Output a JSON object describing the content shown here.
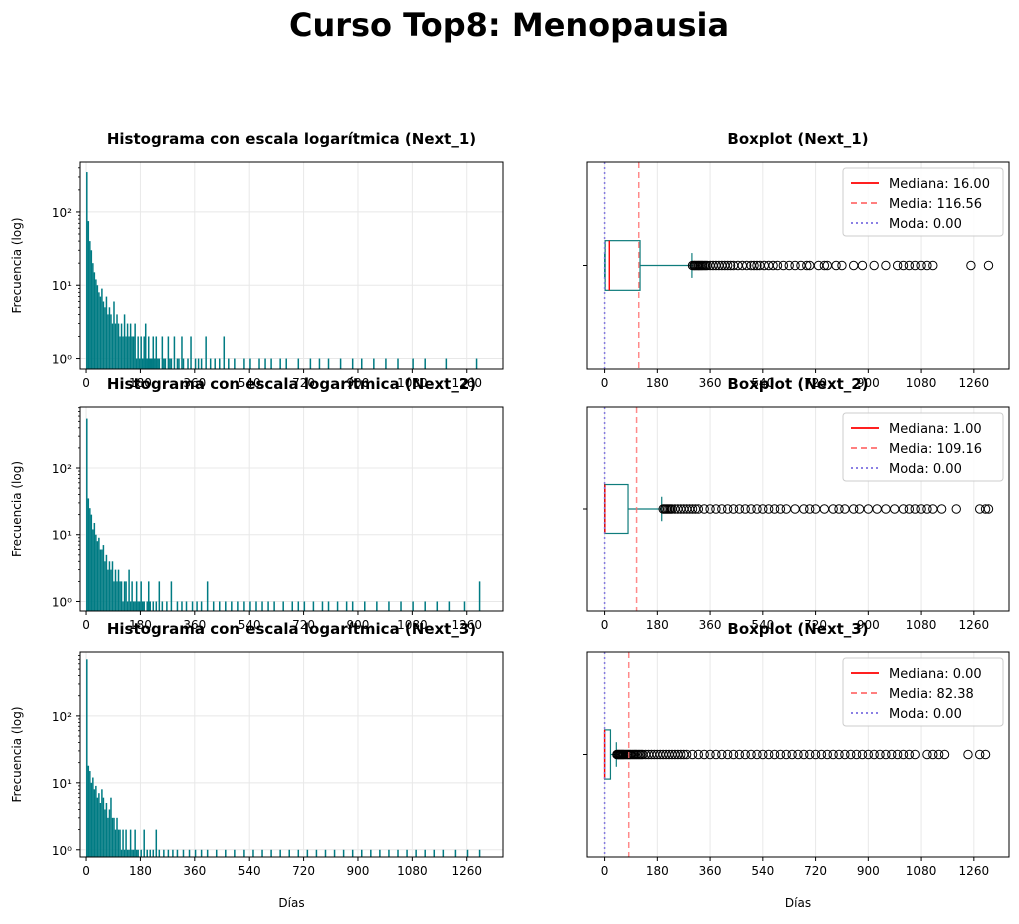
{
  "figure": {
    "title": "Curso Top8: Menopausia",
    "xlabel": "Días",
    "ylabel": "Frecuencia (log)"
  },
  "colors": {
    "bars": "#007b83",
    "box": "#0f7c7c",
    "median": "#ff0000",
    "mean": "#ff6d6d",
    "mode": "#7a6fe0",
    "grid": "#e8e8e8"
  },
  "chart_data": [
    {
      "type": "bar",
      "title": "Histograma con escala logarítmica (Next_1)",
      "ylabel": "Frecuencia (log)",
      "xticks": [
        0,
        180,
        360,
        540,
        720,
        900,
        1080,
        1260
      ],
      "xtick_labels": [
        "0",
        "180",
        "360",
        "540",
        "720",
        "900",
        "1080",
        "1260"
      ],
      "yscale": "log",
      "yticks": [
        "10⁰",
        "10¹",
        "10²"
      ],
      "xlim": [
        -20,
        1380
      ],
      "ylim": [
        0.72,
        480
      ],
      "grid": true,
      "bin_width": 5,
      "bins": [
        [
          0,
          350
        ],
        [
          5,
          75
        ],
        [
          10,
          40
        ],
        [
          15,
          30
        ],
        [
          20,
          20
        ],
        [
          25,
          15
        ],
        [
          30,
          12
        ],
        [
          35,
          10
        ],
        [
          40,
          8
        ],
        [
          45,
          7
        ],
        [
          50,
          9
        ],
        [
          55,
          6
        ],
        [
          60,
          5
        ],
        [
          65,
          7
        ],
        [
          70,
          4
        ],
        [
          75,
          5
        ],
        [
          80,
          4
        ],
        [
          85,
          3
        ],
        [
          90,
          6
        ],
        [
          95,
          3
        ],
        [
          100,
          4
        ],
        [
          105,
          3
        ],
        [
          110,
          2
        ],
        [
          115,
          3
        ],
        [
          120,
          2
        ],
        [
          125,
          4
        ],
        [
          130,
          2
        ],
        [
          135,
          3
        ],
        [
          140,
          2
        ],
        [
          145,
          3
        ],
        [
          150,
          2
        ],
        [
          155,
          2
        ],
        [
          160,
          3
        ],
        [
          165,
          1
        ],
        [
          170,
          2
        ],
        [
          175,
          1
        ],
        [
          180,
          2
        ],
        [
          185,
          1
        ],
        [
          190,
          2
        ],
        [
          195,
          3
        ],
        [
          200,
          1
        ],
        [
          205,
          2
        ],
        [
          210,
          1
        ],
        [
          215,
          1
        ],
        [
          220,
          2
        ],
        [
          225,
          1
        ],
        [
          230,
          2
        ],
        [
          235,
          1
        ],
        [
          240,
          1
        ],
        [
          250,
          2
        ],
        [
          255,
          1
        ],
        [
          260,
          1
        ],
        [
          270,
          2
        ],
        [
          275,
          1
        ],
        [
          280,
          1
        ],
        [
          290,
          2
        ],
        [
          300,
          1
        ],
        [
          305,
          1
        ],
        [
          315,
          2
        ],
        [
          320,
          1
        ],
        [
          335,
          1
        ],
        [
          345,
          2
        ],
        [
          360,
          1
        ],
        [
          370,
          1
        ],
        [
          380,
          1
        ],
        [
          395,
          2
        ],
        [
          410,
          1
        ],
        [
          425,
          1
        ],
        [
          440,
          1
        ],
        [
          455,
          2
        ],
        [
          470,
          1
        ],
        [
          490,
          1
        ],
        [
          520,
          1
        ],
        [
          540,
          1
        ],
        [
          570,
          1
        ],
        [
          590,
          1
        ],
        [
          610,
          1
        ],
        [
          640,
          1
        ],
        [
          660,
          1
        ],
        [
          700,
          1
        ],
        [
          740,
          1
        ],
        [
          770,
          1
        ],
        [
          800,
          1
        ],
        [
          840,
          1
        ],
        [
          880,
          1
        ],
        [
          910,
          1
        ],
        [
          950,
          1
        ],
        [
          990,
          1
        ],
        [
          1030,
          1
        ],
        [
          1080,
          1
        ],
        [
          1120,
          1
        ],
        [
          1190,
          1
        ],
        [
          1290,
          1
        ]
      ]
    },
    {
      "type": "boxplot",
      "title": "Boxplot (Next_1)",
      "xticks": [
        0,
        180,
        360,
        540,
        720,
        900,
        1080,
        1260
      ],
      "xtick_labels": [
        "0",
        "180",
        "360",
        "540",
        "720",
        "900",
        "1080",
        "1260"
      ],
      "xlim": [
        -60,
        1380
      ],
      "grid": true,
      "q1": 2,
      "median": 16.0,
      "q3": 121,
      "whisker_low": 0,
      "whisker_high": 298,
      "mean": 116.56,
      "mode": 0.0,
      "outliers": [
        300,
        305,
        308,
        312,
        316,
        320,
        323,
        327,
        331,
        335,
        340,
        345,
        350,
        360,
        370,
        380,
        390,
        400,
        410,
        420,
        430,
        440,
        455,
        470,
        485,
        500,
        510,
        520,
        530,
        545,
        560,
        575,
        590,
        610,
        630,
        650,
        670,
        690,
        700,
        730,
        750,
        760,
        790,
        810,
        850,
        880,
        920,
        960,
        1000,
        1020,
        1040,
        1060,
        1080,
        1100,
        1120,
        1250,
        1310
      ],
      "legend": [
        "Mediana: 16.00",
        "Media: 116.56",
        "Moda: 0.00"
      ],
      "legend_position": "upper right"
    },
    {
      "type": "bar",
      "title": "Histograma con escala logarítmica (Next_2)",
      "ylabel": "Frecuencia (log)",
      "xticks": [
        0,
        180,
        360,
        540,
        720,
        900,
        1080,
        1260
      ],
      "xtick_labels": [
        "0",
        "180",
        "360",
        "540",
        "720",
        "900",
        "1080",
        "1260"
      ],
      "yscale": "log",
      "yticks": [
        "10⁰",
        "10¹",
        "10²"
      ],
      "xlim": [
        -20,
        1380
      ],
      "ylim": [
        0.72,
        820
      ],
      "grid": true,
      "bin_width": 5,
      "bins": [
        [
          0,
          550
        ],
        [
          5,
          35
        ],
        [
          10,
          25
        ],
        [
          15,
          20
        ],
        [
          20,
          12
        ],
        [
          25,
          15
        ],
        [
          30,
          10
        ],
        [
          35,
          8
        ],
        [
          40,
          9
        ],
        [
          45,
          6
        ],
        [
          50,
          6
        ],
        [
          55,
          7
        ],
        [
          60,
          4
        ],
        [
          65,
          5
        ],
        [
          70,
          3
        ],
        [
          75,
          4
        ],
        [
          80,
          3
        ],
        [
          85,
          4
        ],
        [
          90,
          2
        ],
        [
          95,
          3
        ],
        [
          100,
          2
        ],
        [
          105,
          3
        ],
        [
          110,
          2
        ],
        [
          115,
          2
        ],
        [
          120,
          1
        ],
        [
          125,
          2
        ],
        [
          130,
          2
        ],
        [
          135,
          1
        ],
        [
          140,
          3
        ],
        [
          145,
          1
        ],
        [
          150,
          2
        ],
        [
          155,
          1
        ],
        [
          160,
          1
        ],
        [
          165,
          2
        ],
        [
          170,
          1
        ],
        [
          175,
          1
        ],
        [
          180,
          2
        ],
        [
          185,
          1
        ],
        [
          190,
          1
        ],
        [
          200,
          1
        ],
        [
          205,
          2
        ],
        [
          210,
          1
        ],
        [
          220,
          1
        ],
        [
          230,
          1
        ],
        [
          240,
          2
        ],
        [
          250,
          1
        ],
        [
          265,
          1
        ],
        [
          280,
          2
        ],
        [
          300,
          1
        ],
        [
          315,
          1
        ],
        [
          330,
          1
        ],
        [
          350,
          1
        ],
        [
          365,
          1
        ],
        [
          380,
          1
        ],
        [
          400,
          2
        ],
        [
          420,
          1
        ],
        [
          440,
          1
        ],
        [
          460,
          1
        ],
        [
          480,
          1
        ],
        [
          500,
          1
        ],
        [
          520,
          1
        ],
        [
          540,
          1
        ],
        [
          560,
          1
        ],
        [
          580,
          1
        ],
        [
          600,
          1
        ],
        [
          620,
          1
        ],
        [
          650,
          1
        ],
        [
          680,
          1
        ],
        [
          700,
          1
        ],
        [
          720,
          1
        ],
        [
          750,
          1
        ],
        [
          780,
          1
        ],
        [
          800,
          1
        ],
        [
          830,
          1
        ],
        [
          860,
          1
        ],
        [
          880,
          1
        ],
        [
          920,
          1
        ],
        [
          960,
          1
        ],
        [
          1000,
          1
        ],
        [
          1040,
          1
        ],
        [
          1080,
          1
        ],
        [
          1120,
          1
        ],
        [
          1160,
          1
        ],
        [
          1200,
          1
        ],
        [
          1250,
          1
        ],
        [
          1300,
          2
        ]
      ]
    },
    {
      "type": "boxplot",
      "title": "Boxplot (Next_2)",
      "xticks": [
        0,
        180,
        360,
        540,
        720,
        900,
        1080,
        1260
      ],
      "xtick_labels": [
        "0",
        "180",
        "360",
        "540",
        "720",
        "900",
        "1080",
        "1260"
      ],
      "xlim": [
        -60,
        1380
      ],
      "grid": true,
      "q1": 0,
      "median": 1.0,
      "q3": 80,
      "whisker_low": 0,
      "whisker_high": 195,
      "mean": 109.16,
      "mode": 0.0,
      "outliers": [
        200,
        205,
        210,
        215,
        220,
        225,
        230,
        240,
        250,
        260,
        270,
        280,
        290,
        300,
        310,
        320,
        340,
        360,
        380,
        400,
        420,
        440,
        460,
        480,
        500,
        520,
        540,
        560,
        580,
        600,
        620,
        650,
        680,
        700,
        720,
        750,
        780,
        800,
        820,
        850,
        870,
        900,
        930,
        960,
        990,
        1020,
        1040,
        1060,
        1080,
        1100,
        1120,
        1150,
        1200,
        1280,
        1300,
        1310
      ],
      "legend": [
        "Mediana: 1.00",
        "Media: 109.16",
        "Moda: 0.00"
      ],
      "legend_position": "upper right"
    },
    {
      "type": "bar",
      "title": "Histograma con escala logarítmica (Next_3)",
      "ylabel": "Frecuencia (log)",
      "xlabel": "Días",
      "xticks": [
        0,
        180,
        360,
        540,
        720,
        900,
        1080,
        1260
      ],
      "xtick_labels": [
        "0",
        "180",
        "360",
        "540",
        "720",
        "900",
        "1080",
        "1260"
      ],
      "yscale": "log",
      "yticks": [
        "10⁰",
        "10¹",
        "10²"
      ],
      "xlim": [
        -20,
        1380
      ],
      "ylim": [
        0.78,
        900
      ],
      "grid": true,
      "bin_width": 5,
      "bins": [
        [
          0,
          700
        ],
        [
          5,
          18
        ],
        [
          10,
          15
        ],
        [
          15,
          10
        ],
        [
          20,
          12
        ],
        [
          25,
          8
        ],
        [
          30,
          9
        ],
        [
          35,
          6
        ],
        [
          40,
          7
        ],
        [
          45,
          5
        ],
        [
          50,
          8
        ],
        [
          55,
          6
        ],
        [
          60,
          4
        ],
        [
          65,
          5
        ],
        [
          70,
          3
        ],
        [
          75,
          4
        ],
        [
          80,
          6
        ],
        [
          85,
          3
        ],
        [
          90,
          3
        ],
        [
          95,
          2
        ],
        [
          100,
          3
        ],
        [
          105,
          2
        ],
        [
          110,
          2
        ],
        [
          115,
          1
        ],
        [
          120,
          2
        ],
        [
          125,
          1
        ],
        [
          130,
          2
        ],
        [
          135,
          1
        ],
        [
          140,
          1
        ],
        [
          145,
          2
        ],
        [
          150,
          1
        ],
        [
          155,
          1
        ],
        [
          160,
          2
        ],
        [
          165,
          1
        ],
        [
          170,
          1
        ],
        [
          180,
          1
        ],
        [
          190,
          2
        ],
        [
          200,
          1
        ],
        [
          210,
          1
        ],
        [
          220,
          1
        ],
        [
          230,
          2
        ],
        [
          240,
          1
        ],
        [
          255,
          1
        ],
        [
          270,
          1
        ],
        [
          285,
          1
        ],
        [
          300,
          1
        ],
        [
          320,
          1
        ],
        [
          340,
          1
        ],
        [
          360,
          1
        ],
        [
          380,
          1
        ],
        [
          400,
          1
        ],
        [
          430,
          1
        ],
        [
          460,
          1
        ],
        [
          490,
          1
        ],
        [
          520,
          1
        ],
        [
          550,
          1
        ],
        [
          580,
          1
        ],
        [
          610,
          1
        ],
        [
          640,
          1
        ],
        [
          670,
          1
        ],
        [
          700,
          1
        ],
        [
          730,
          1
        ],
        [
          760,
          1
        ],
        [
          790,
          1
        ],
        [
          820,
          1
        ],
        [
          850,
          1
        ],
        [
          880,
          1
        ],
        [
          910,
          1
        ],
        [
          940,
          1
        ],
        [
          970,
          1
        ],
        [
          1000,
          1
        ],
        [
          1030,
          1
        ],
        [
          1060,
          1
        ],
        [
          1090,
          1
        ],
        [
          1120,
          1
        ],
        [
          1150,
          1
        ],
        [
          1180,
          1
        ],
        [
          1220,
          1
        ],
        [
          1260,
          1
        ],
        [
          1300,
          1
        ]
      ]
    },
    {
      "type": "boxplot",
      "title": "Boxplot (Next_3)",
      "xlabel": "Días",
      "xticks": [
        0,
        180,
        360,
        540,
        720,
        900,
        1080,
        1260
      ],
      "xtick_labels": [
        "0",
        "180",
        "360",
        "540",
        "720",
        "900",
        "1080",
        "1260"
      ],
      "xlim": [
        -60,
        1380
      ],
      "grid": true,
      "q1": 0,
      "median": 0.0,
      "q3": 20,
      "whisker_low": 0,
      "whisker_high": 40,
      "mean": 82.38,
      "mode": 0.0,
      "outliers": [
        42,
        45,
        48,
        51,
        54,
        57,
        60,
        63,
        66,
        70,
        74,
        78,
        82,
        86,
        90,
        95,
        100,
        105,
        110,
        115,
        120,
        125,
        130,
        140,
        150,
        160,
        170,
        180,
        190,
        200,
        210,
        220,
        230,
        240,
        250,
        260,
        270,
        280,
        300,
        320,
        340,
        360,
        380,
        400,
        420,
        440,
        460,
        480,
        500,
        520,
        540,
        560,
        580,
        600,
        620,
        640,
        660,
        680,
        700,
        720,
        740,
        760,
        780,
        800,
        820,
        840,
        860,
        880,
        900,
        920,
        940,
        960,
        980,
        1000,
        1020,
        1040,
        1060,
        1100,
        1120,
        1140,
        1160,
        1240,
        1280,
        1300
      ],
      "legend": [
        "Mediana: 0.00",
        "Media: 82.38",
        "Moda: 0.00"
      ],
      "legend_position": "upper right"
    }
  ]
}
